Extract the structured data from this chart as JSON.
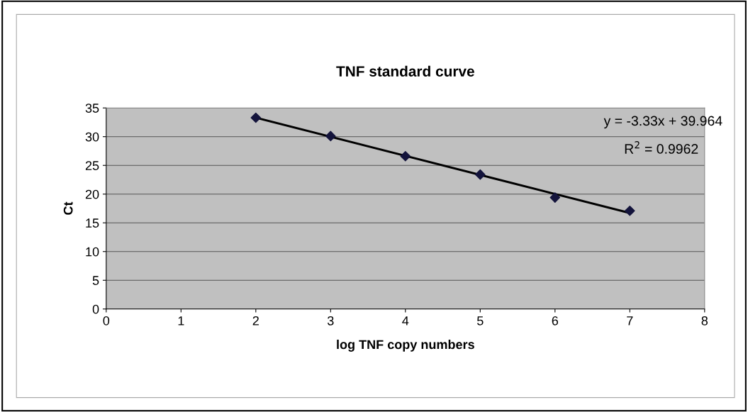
{
  "chart_data": {
    "type": "scatter",
    "title": "TNF standard curve",
    "xlabel": "log TNF copy numbers",
    "ylabel": "Ct",
    "x": [
      2,
      3,
      4,
      5,
      6,
      7
    ],
    "series": [
      {
        "color": "#14143c",
        "values": [
          33.3,
          30.1,
          26.6,
          23.4,
          19.4,
          17.1
        ],
        "marker": "diamond"
      },
      {
        "type": "line",
        "color": "#000000",
        "x": [
          2,
          7
        ],
        "values": [
          33.3,
          16.7
        ],
        "marker": "none",
        "line_style": "solid"
      }
    ],
    "annotations": [
      "y = -3.33x + 39.964",
      "R$^{2}$ = 0.9962"
    ],
    "xlim": [
      0,
      8
    ],
    "xticks": [
      0,
      1,
      2,
      3,
      4,
      5,
      6,
      7,
      8
    ],
    "ylim": [
      0,
      35
    ],
    "yticks": [
      0,
      5,
      10,
      15,
      20,
      25,
      30,
      35
    ],
    "grid": "y",
    "legend": false
  }
}
